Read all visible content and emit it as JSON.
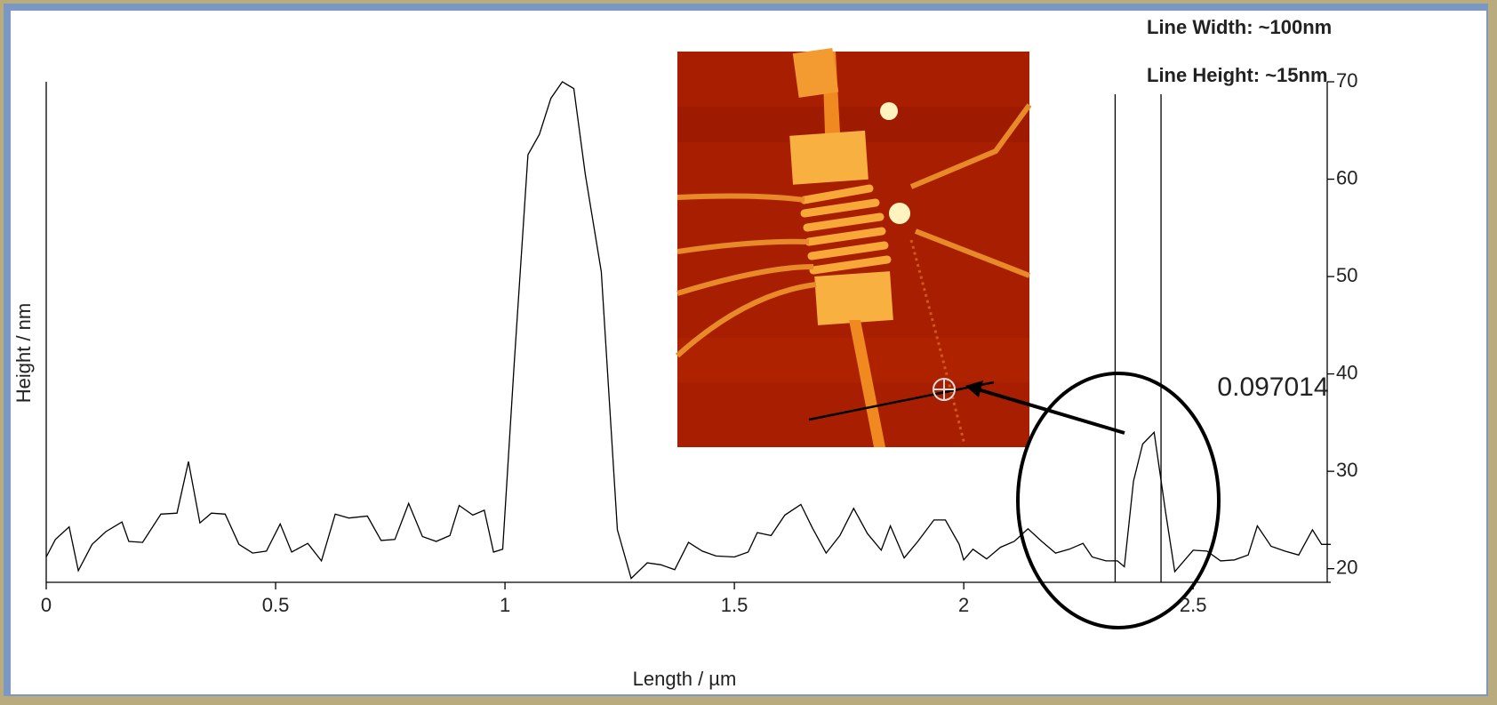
{
  "chart_data": {
    "type": "line",
    "x_label": "Length / µm",
    "y_label": "Height / nm",
    "annotations": [
      "Line Width: ~100nm",
      "Line Height: ~15nm",
      "0.097014"
    ],
    "x": [
      0,
      0.02,
      0.05,
      0.07,
      0.1,
      0.13,
      0.165,
      0.18,
      0.21,
      0.25,
      0.285,
      0.31,
      0.335,
      0.36,
      0.39,
      0.42,
      0.45,
      0.48,
      0.51,
      0.535,
      0.57,
      0.6,
      0.63,
      0.66,
      0.7,
      0.73,
      0.76,
      0.79,
      0.82,
      0.85,
      0.88,
      0.9,
      0.93,
      0.955,
      0.975,
      0.995,
      1.02,
      1.05,
      1.075,
      1.1,
      1.125,
      1.15,
      1.175,
      1.21,
      1.245,
      1.275,
      1.31,
      1.34,
      1.37,
      1.4,
      1.43,
      1.46,
      1.5,
      1.53,
      1.55,
      1.58,
      1.61,
      1.645,
      1.67,
      1.7,
      1.73,
      1.76,
      1.79,
      1.82,
      1.84,
      1.87,
      1.9,
      1.935,
      1.96,
      1.99,
      2.0,
      2.02,
      2.05,
      2.08,
      2.11,
      2.14,
      2.17,
      2.2,
      2.23,
      2.26,
      2.28,
      2.31,
      2.335,
      2.35,
      2.37,
      2.39,
      2.415,
      2.44,
      2.46,
      2.5,
      2.53,
      2.56,
      2.59,
      2.62,
      2.64,
      2.67,
      2.7,
      2.73,
      2.76,
      2.78,
      2.8
    ],
    "values": [
      21.2,
      23,
      24.3,
      19.8,
      22.5,
      23.8,
      24.8,
      22.8,
      22.7,
      25.6,
      25.7,
      31,
      24.7,
      25.7,
      25.6,
      22.5,
      21.6,
      21.8,
      24.6,
      21.7,
      22.6,
      20.8,
      25.6,
      25.2,
      25.4,
      22.9,
      23,
      26.7,
      23.3,
      22.8,
      23.4,
      26.5,
      25.5,
      26,
      21.7,
      22,
      41,
      62.5,
      64.6,
      68.3,
      70,
      69.3,
      60.5,
      50.5,
      24,
      19,
      20.6,
      20.4,
      19.9,
      22.7,
      21.8,
      21.3,
      21.2,
      21.7,
      23.7,
      23.4,
      25.5,
      26.6,
      24.2,
      21.6,
      23.4,
      26.2,
      23.6,
      21.9,
      24.4,
      21.1,
      22.8,
      25,
      25,
      22.5,
      20.9,
      22,
      21,
      22.2,
      22.8,
      24.1,
      22.8,
      21.6,
      22,
      22.6,
      21.2,
      20.8,
      20.8,
      20.2,
      29,
      32.8,
      34,
      25.8,
      19.7,
      21.9,
      21.8,
      20.8,
      20.9,
      21.4,
      24.4,
      22.3,
      21.8,
      21.4,
      24,
      22.5,
      22.5
    ],
    "color": "#000000",
    "cursors_x": [
      2.33,
      2.43
    ],
    "xlim": [
      0,
      2.8
    ],
    "xticks": [
      0,
      0.5,
      1,
      1.5,
      2,
      2.5
    ],
    "ylim": [
      18.6,
      70
    ],
    "yticks": [
      20,
      30,
      40,
      50,
      60,
      70
    ]
  }
}
